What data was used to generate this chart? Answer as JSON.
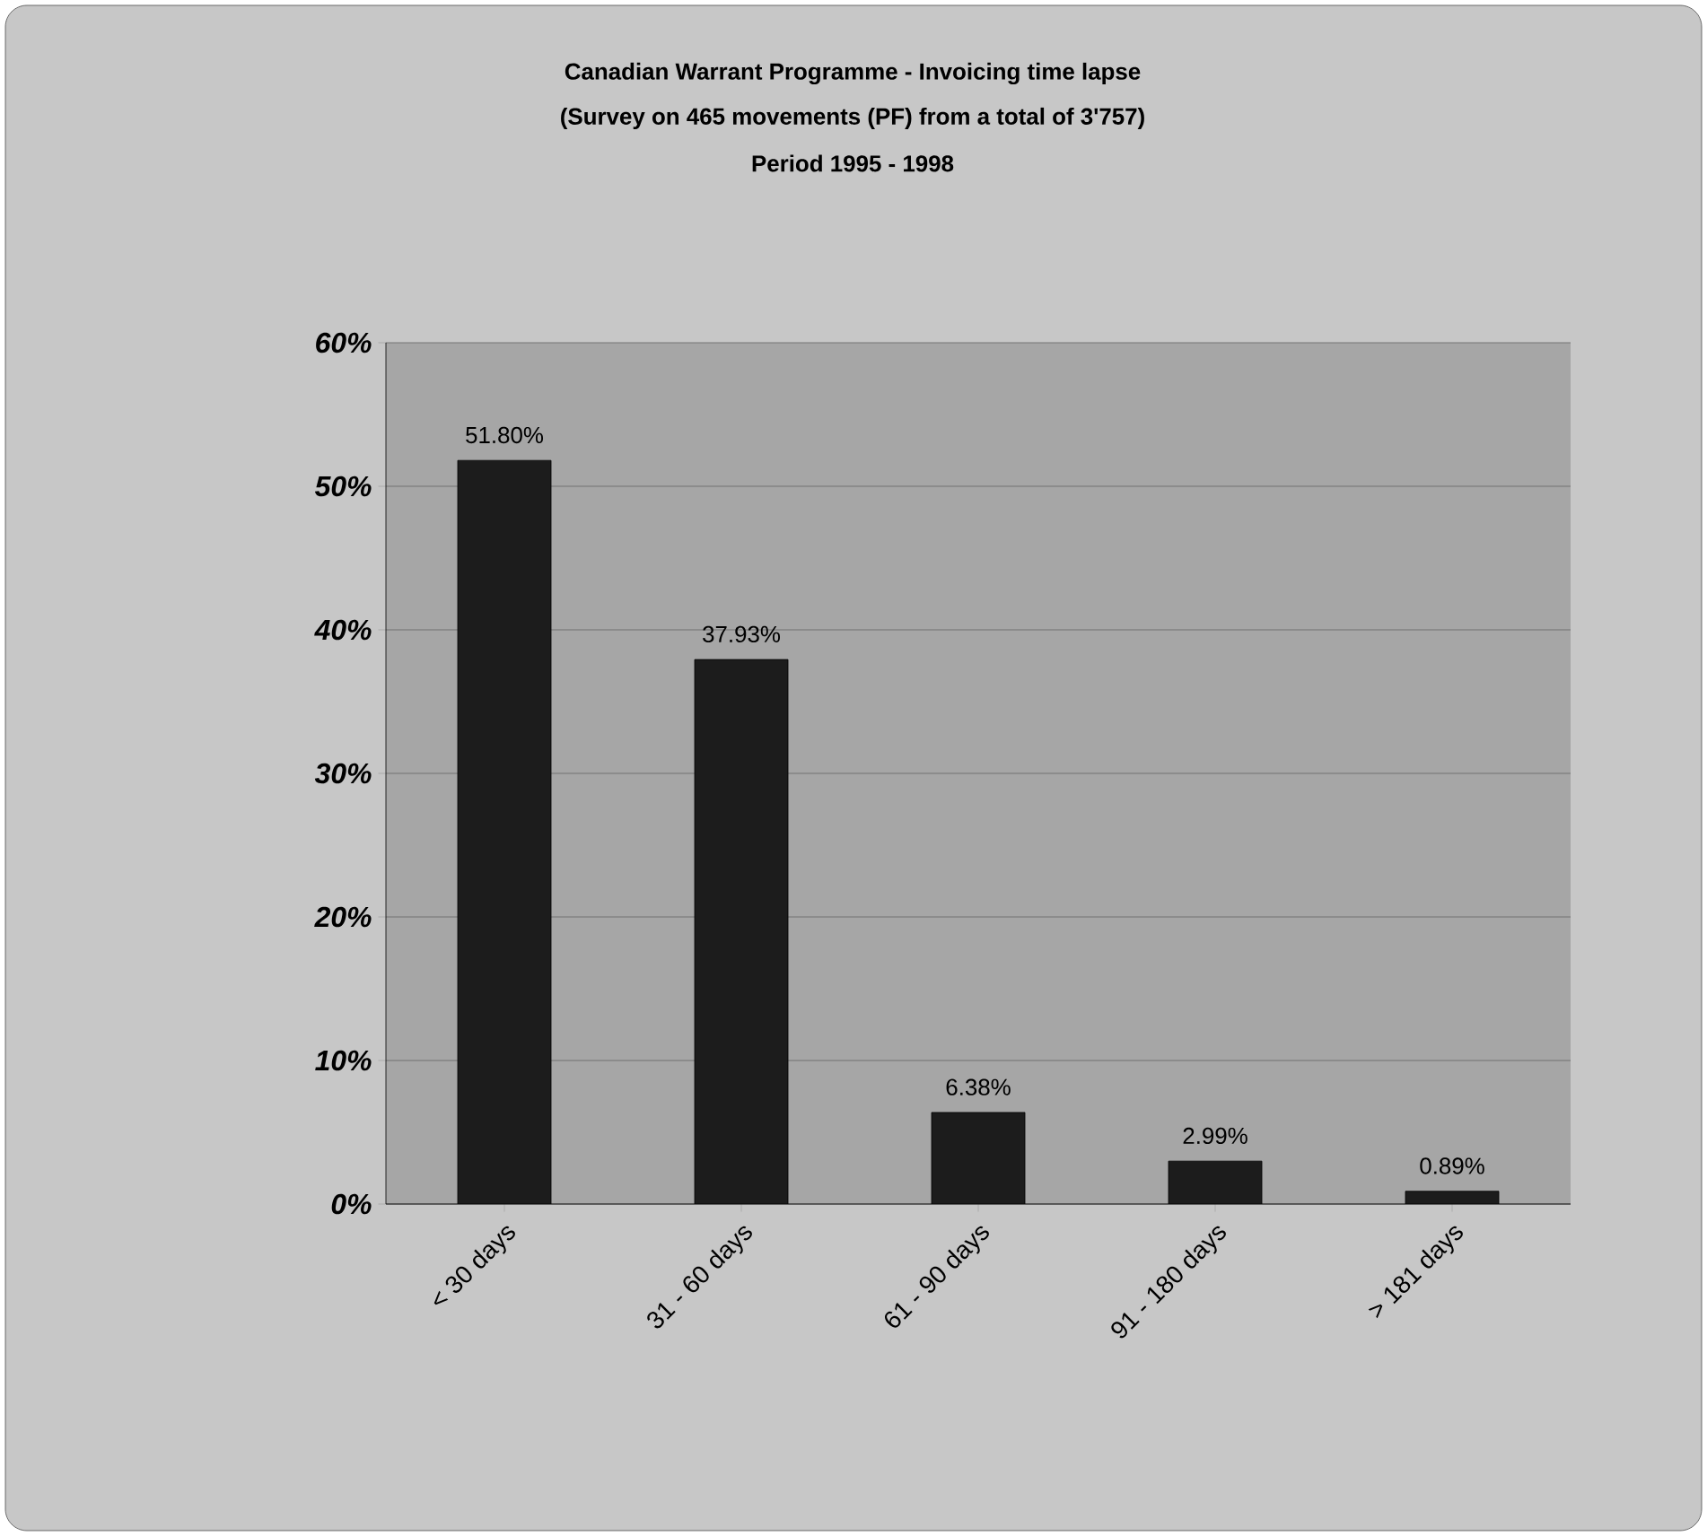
{
  "chart_data": {
    "type": "bar",
    "title": "Canadian Warrant Programme - Invoicing time lapse",
    "subtitle": "(Survey on 465 movements (PF) from a total of 3'757)",
    "annotations": [
      "Period 1995 - 1998"
    ],
    "categories": [
      "< 30 days",
      "31 - 60 days",
      "61 - 90 days",
      "91 - 180 days",
      "> 181 days"
    ],
    "values": [
      51.8,
      37.93,
      6.38,
      2.99,
      0.89
    ],
    "value_labels": [
      "51.80%",
      "37.93%",
      "6.38%",
      "2.99%",
      "0.89%"
    ],
    "color": "#1c1c1c",
    "ylim": [
      0,
      60
    ],
    "yticks": [
      {
        "value": 0,
        "label": "0%"
      },
      {
        "value": 10,
        "label": "10%"
      },
      {
        "value": 20,
        "label": "20%"
      },
      {
        "value": 30,
        "label": "30%"
      },
      {
        "value": 40,
        "label": "40%"
      },
      {
        "value": 50,
        "label": "50%"
      },
      {
        "value": 60,
        "label": "60%"
      }
    ],
    "grid": "y"
  }
}
